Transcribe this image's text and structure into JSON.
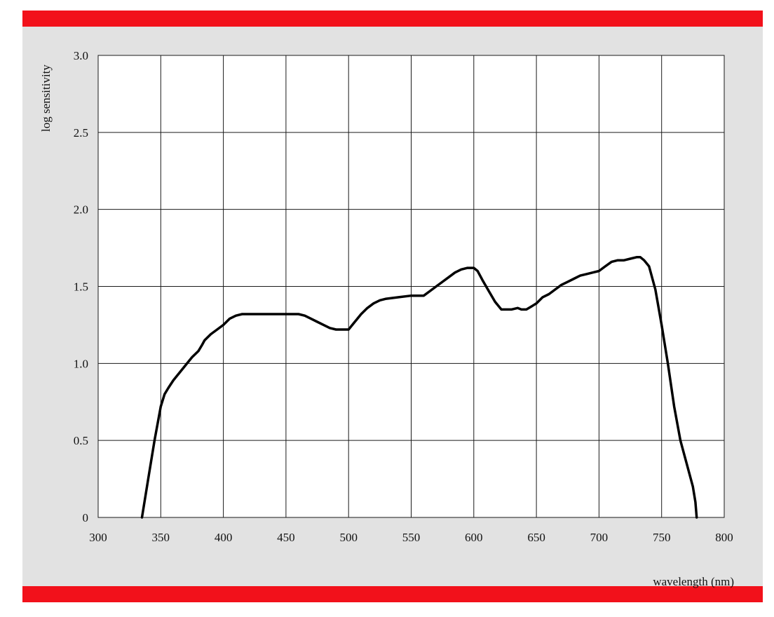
{
  "colors": {
    "band": "#f2111b",
    "panel": "#e2e2e2",
    "plot_bg": "#ffffff",
    "grid": "#1a1a1a",
    "line": "#000000"
  },
  "chart_data": {
    "type": "line",
    "title": "",
    "xlabel": "wavelength (nm)",
    "ylabel": "log sensitivity",
    "xlim": [
      300,
      800
    ],
    "ylim": [
      0,
      3.0
    ],
    "x_ticks": [
      300,
      350,
      400,
      450,
      500,
      550,
      600,
      650,
      700,
      750,
      800
    ],
    "x_tick_labels": [
      "300",
      "350",
      "400",
      "450",
      "500",
      "550",
      "600",
      "650",
      "700",
      "750",
      "800"
    ],
    "y_ticks": [
      0,
      0.5,
      1.0,
      1.5,
      2.0,
      2.5,
      3.0
    ],
    "y_tick_labels": [
      "0",
      "0.5",
      "1.0",
      "1.5",
      "2.0",
      "2.5",
      "3.0"
    ],
    "grid": true,
    "series": [
      {
        "x": [
          335,
          340,
          345,
          350,
          353,
          356,
          360,
          365,
          370,
          375,
          380,
          383,
          385,
          390,
          395,
          400,
          405,
          410,
          415,
          420,
          430,
          440,
          450,
          460,
          465,
          470,
          475,
          480,
          485,
          490,
          495,
          500,
          505,
          510,
          515,
          520,
          525,
          530,
          540,
          550,
          555,
          560,
          565,
          570,
          575,
          580,
          585,
          590,
          595,
          600,
          603,
          607,
          612,
          617,
          622,
          626,
          630,
          635,
          638,
          642,
          646,
          650,
          655,
          660,
          665,
          670,
          675,
          680,
          685,
          690,
          695,
          700,
          705,
          710,
          715,
          720,
          725,
          730,
          733,
          736,
          740,
          745,
          750,
          755,
          760,
          765,
          770,
          775,
          777,
          778
        ],
        "y": [
          0,
          0.25,
          0.5,
          0.72,
          0.8,
          0.84,
          0.89,
          0.94,
          0.99,
          1.04,
          1.08,
          1.12,
          1.15,
          1.19,
          1.22,
          1.25,
          1.29,
          1.31,
          1.32,
          1.32,
          1.32,
          1.32,
          1.32,
          1.32,
          1.31,
          1.29,
          1.27,
          1.25,
          1.23,
          1.22,
          1.22,
          1.22,
          1.27,
          1.32,
          1.36,
          1.39,
          1.41,
          1.42,
          1.43,
          1.44,
          1.44,
          1.44,
          1.47,
          1.5,
          1.53,
          1.56,
          1.59,
          1.61,
          1.62,
          1.62,
          1.6,
          1.54,
          1.47,
          1.4,
          1.35,
          1.35,
          1.35,
          1.36,
          1.35,
          1.35,
          1.37,
          1.39,
          1.43,
          1.45,
          1.48,
          1.51,
          1.53,
          1.55,
          1.57,
          1.58,
          1.59,
          1.6,
          1.63,
          1.66,
          1.67,
          1.67,
          1.68,
          1.69,
          1.69,
          1.67,
          1.63,
          1.48,
          1.25,
          1.0,
          0.72,
          0.5,
          0.35,
          0.2,
          0.1,
          0
        ]
      }
    ]
  }
}
